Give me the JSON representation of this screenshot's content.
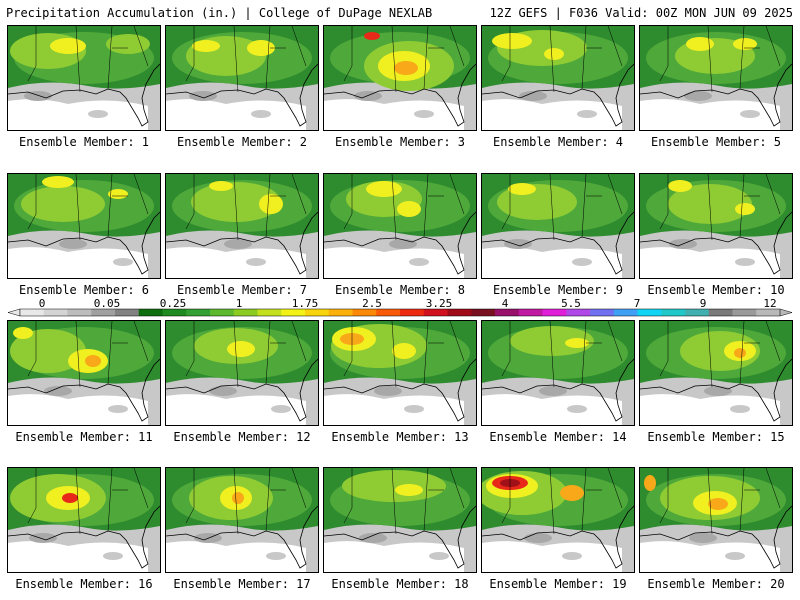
{
  "header": {
    "left": "Precipitation Accumulation (in.) | College of DuPage NEXLAB",
    "right": "12Z GEFS | F036 Valid: 00Z MON JUN 09 2025"
  },
  "members": [
    "Ensemble Member: 1",
    "Ensemble Member: 2",
    "Ensemble Member: 3",
    "Ensemble Member: 4",
    "Ensemble Member: 5",
    "Ensemble Member: 6",
    "Ensemble Member: 7",
    "Ensemble Member: 8",
    "Ensemble Member: 9",
    "Ensemble Member: 10",
    "Ensemble Member: 11",
    "Ensemble Member: 12",
    "Ensemble Member: 13",
    "Ensemble Member: 14",
    "Ensemble Member: 15",
    "Ensemble Member: 16",
    "Ensemble Member: 17",
    "Ensemble Member: 18",
    "Ensemble Member: 19",
    "Ensemble Member: 20"
  ],
  "colorbar": {
    "labels": [
      "0",
      "0.05",
      "0.25",
      "1",
      "1.75",
      "2.5",
      "3.25",
      "4",
      "5.5",
      "7",
      "9",
      "12"
    ],
    "colors": [
      "#e8e8e8",
      "#d4d4d4",
      "#bdbdbd",
      "#a0a0a0",
      "#828282",
      "#0e6e0e",
      "#1f8a1f",
      "#33a033",
      "#5cb82c",
      "#8ccc22",
      "#c2e01c",
      "#f2f216",
      "#f8d40c",
      "#fcb00a",
      "#fc8808",
      "#f85a08",
      "#ec2a10",
      "#d0101c",
      "#a00a18",
      "#781020",
      "#98106a",
      "#c018a0",
      "#e020d8",
      "#b048e8",
      "#7070f0",
      "#40a0f4",
      "#10d4f4",
      "#20c8c8",
      "#40b0b0",
      "#7a7a7a",
      "#9a9a9a",
      "#b8b8b8"
    ]
  },
  "palette": {
    "green_dark": "#2e8b2e",
    "green_mid": "#4ea83a",
    "green_light": "#8fcc34",
    "yellow": "#f0f020",
    "orange": "#f8a818",
    "red": "#e82818",
    "dark_red": "#a01018",
    "land_gray": "#c8c8c8",
    "land_gray_dark": "#a8a8a8",
    "white": "#ffffff"
  }
}
